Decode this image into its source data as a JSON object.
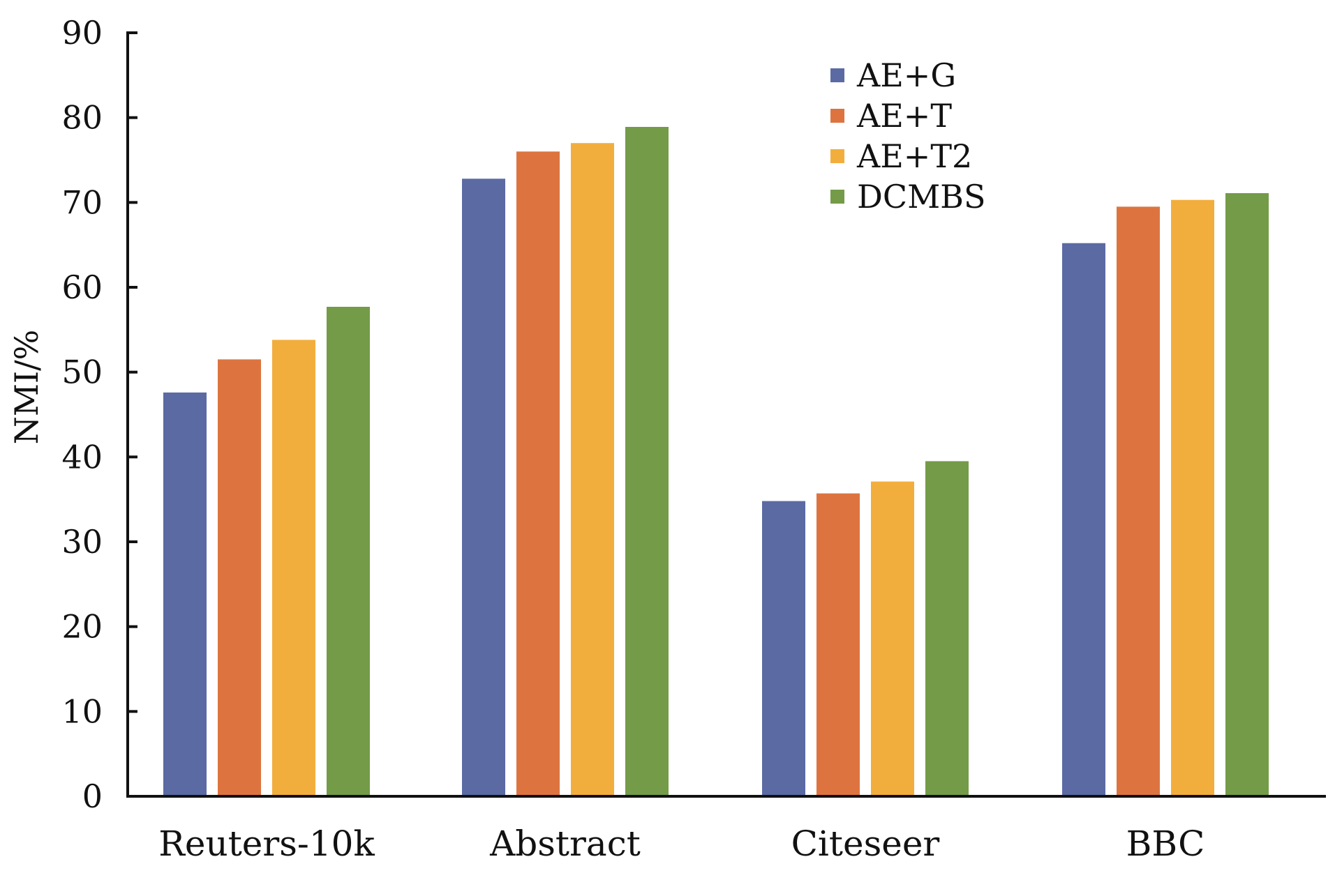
{
  "chart_data": {
    "type": "bar",
    "title": "",
    "xlabel": "",
    "ylabel": "NMI/%",
    "ylim": [
      0,
      90
    ],
    "yticks": [
      0,
      10,
      20,
      30,
      40,
      50,
      60,
      70,
      80,
      90
    ],
    "grid": false,
    "legend_position": "top-right",
    "categories": [
      "Reuters-10k",
      "Abstract",
      "Citeseer",
      "BBC"
    ],
    "series": [
      {
        "name": "AE+G",
        "color": "#5b6aa3",
        "values": [
          47.6,
          72.8,
          34.8,
          65.2
        ]
      },
      {
        "name": "AE+T",
        "color": "#dd7440",
        "values": [
          51.5,
          76.0,
          35.7,
          69.5
        ]
      },
      {
        "name": "AE+T2",
        "color": "#f2ae3c",
        "values": [
          53.8,
          77.0,
          37.1,
          70.3
        ]
      },
      {
        "name": "DCMBS",
        "color": "#749b48",
        "values": [
          57.7,
          78.9,
          39.5,
          71.1
        ]
      }
    ]
  }
}
